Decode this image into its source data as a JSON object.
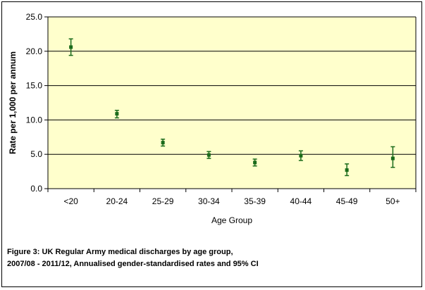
{
  "chart_data": {
    "type": "scatter",
    "title": "",
    "xlabel": "Age Group",
    "ylabel": "Rate per 1,000 per annum",
    "categories": [
      "<20",
      "20-24",
      "25-29",
      "30-34",
      "35-39",
      "40-44",
      "45-49",
      "50+"
    ],
    "series": [
      {
        "values": [
          20.6,
          10.9,
          6.7,
          4.9,
          3.8,
          4.8,
          2.7,
          4.4
        ],
        "ci_lower": [
          19.4,
          10.3,
          6.2,
          4.4,
          3.3,
          4.1,
          1.9,
          3.1
        ],
        "ci_upper": [
          21.8,
          11.4,
          7.2,
          5.4,
          4.3,
          5.5,
          3.6,
          6.1
        ]
      }
    ],
    "yticks": [
      "0.0",
      "5.0",
      "10.0",
      "15.0",
      "20.0",
      "25.0"
    ],
    "ylim": [
      0,
      25
    ],
    "grid": true,
    "legend": "none",
    "colors": {
      "plot_background": "#ffffcc",
      "marker": "#1a6b1a",
      "gridline": "#000000"
    }
  },
  "caption": {
    "line1": "Figure 3: UK Regular Army medical discharges by age group,",
    "line2": "2007/08 - 2011/12, Annualised gender-standardised rates and 95% CI"
  }
}
